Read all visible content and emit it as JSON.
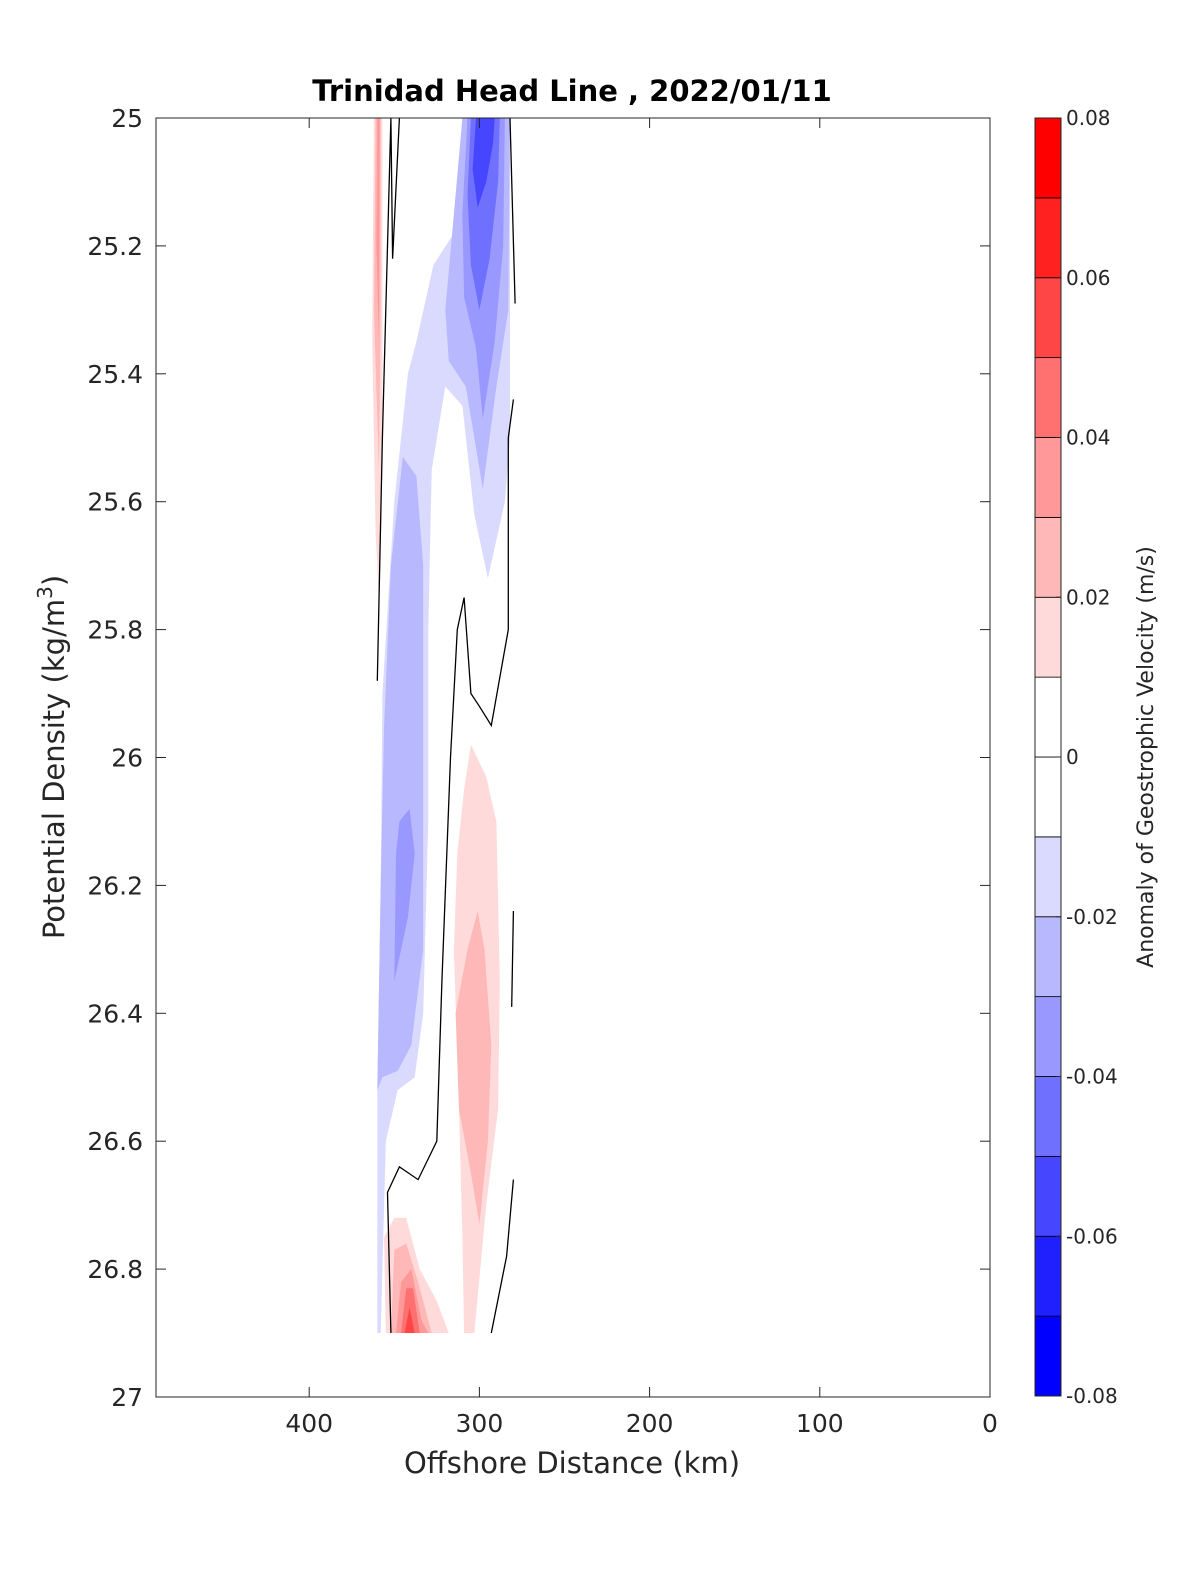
{
  "chart_data": {
    "type": "filled-contour",
    "title": "Trinidad Head Line , 2022/01/11",
    "xlabel": "Offshore Distance (km)",
    "ylabel_main": "Potential Density (kg/m",
    "ylabel_sup": "3",
    "ylabel_close": ")",
    "xlim": [
      490,
      0
    ],
    "ylim": [
      25,
      27
    ],
    "y_reversed": true,
    "x_ticks": [
      400,
      300,
      200,
      100,
      0
    ],
    "x_tick_labels": [
      "400",
      "300",
      "200",
      "100",
      "0"
    ],
    "y_ticks": [
      25,
      25.2,
      25.4,
      25.6,
      25.8,
      26,
      26.2,
      26.4,
      26.6,
      26.8,
      27
    ],
    "y_tick_labels": [
      "25",
      "25.2",
      "25.4",
      "25.6",
      "25.8",
      "26",
      "26.2",
      "26.4",
      "26.6",
      "26.8",
      "27"
    ],
    "colorbar": {
      "label": "Anomaly of Geostrophic Velocity (m/s)",
      "range": [
        -0.08,
        0.08
      ],
      "levels": [
        -0.08,
        -0.07,
        -0.06,
        -0.05,
        -0.04,
        -0.03,
        -0.02,
        -0.01,
        0,
        0.01,
        0.02,
        0.03,
        0.04,
        0.05,
        0.06,
        0.07,
        0.08
      ],
      "colors": [
        "#0000ff",
        "#2020ff",
        "#4646ff",
        "#7070ff",
        "#9898ff",
        "#b8b8ff",
        "#dadaff",
        "#ffffff",
        "#ffffff",
        "#ffdada",
        "#ffb8b8",
        "#ff9898",
        "#ff7070",
        "#ff4646",
        "#ff2020",
        "#ff0000"
      ],
      "tick_values": [
        0.08,
        0.06,
        0.04,
        0.02,
        0,
        -0.02,
        -0.04,
        -0.06,
        -0.08
      ],
      "tick_labels": [
        "0.08",
        "0.06",
        "0.04",
        "0.02",
        "0",
        "-0.02",
        "-0.04",
        "-0.06",
        "-0.08"
      ]
    },
    "data_extent": {
      "x": [
        280,
        360
      ],
      "y": [
        25,
        26.9
      ]
    },
    "regions": [
      {
        "sign": "negative",
        "level": -0.01,
        "color": "#dadaff",
        "poly": [
          [
            360,
            26.9
          ],
          [
            360,
            26.52
          ],
          [
            358,
            26.2
          ],
          [
            357,
            25.9
          ],
          [
            350,
            25.6
          ],
          [
            342,
            25.4
          ],
          [
            337,
            25.35
          ],
          [
            327,
            25.23
          ],
          [
            315,
            25.18
          ],
          [
            305,
            25.15
          ],
          [
            297,
            25.02
          ],
          [
            282,
            25
          ],
          [
            282,
            25.5
          ],
          [
            285,
            25.6
          ],
          [
            295,
            25.72
          ],
          [
            303,
            25.62
          ],
          [
            310,
            25.45
          ],
          [
            320,
            25.42
          ],
          [
            328,
            25.55
          ],
          [
            330,
            25.8
          ],
          [
            330,
            26.1
          ],
          [
            333,
            26.4
          ],
          [
            338,
            26.5
          ],
          [
            348,
            26.52
          ],
          [
            355,
            26.6
          ],
          [
            358,
            26.9
          ]
        ]
      },
      {
        "sign": "negative",
        "level": -0.02,
        "color": "#b8b8ff",
        "poly": [
          [
            360,
            26.52
          ],
          [
            358,
            26.2
          ],
          [
            356,
            25.95
          ],
          [
            352,
            25.7
          ],
          [
            345,
            25.53
          ],
          [
            337,
            25.56
          ],
          [
            333,
            25.7
          ],
          [
            333,
            26
          ],
          [
            333,
            26.3
          ],
          [
            340,
            26.45
          ],
          [
            348,
            26.49
          ],
          [
            357,
            26.5
          ]
        ]
      },
      {
        "sign": "negative",
        "level": -0.02,
        "color": "#b8b8ff",
        "poly": [
          [
            310,
            25
          ],
          [
            315,
            25.15
          ],
          [
            320,
            25.3
          ],
          [
            318,
            25.38
          ],
          [
            308,
            25.42
          ],
          [
            298,
            25.58
          ],
          [
            290,
            25.42
          ],
          [
            283,
            25.3
          ],
          [
            282,
            25
          ]
        ]
      },
      {
        "sign": "negative",
        "level": -0.03,
        "color": "#9898ff",
        "poly": [
          [
            350,
            26.35
          ],
          [
            349,
            26.15
          ],
          [
            347,
            26.1
          ],
          [
            341,
            26.08
          ],
          [
            338,
            26.15
          ],
          [
            342,
            26.25
          ]
        ]
      },
      {
        "sign": "negative",
        "level": -0.03,
        "color": "#9898ff",
        "poly": [
          [
            307,
            25
          ],
          [
            310,
            25.15
          ],
          [
            309,
            25.28
          ],
          [
            302,
            25.36
          ],
          [
            298,
            25.47
          ],
          [
            291,
            25.35
          ],
          [
            286,
            25.2
          ],
          [
            285,
            25
          ]
        ]
      },
      {
        "sign": "negative",
        "level": -0.04,
        "color": "#7070ff",
        "poly": [
          [
            305,
            25
          ],
          [
            307,
            25.12
          ],
          [
            305,
            25.23
          ],
          [
            300,
            25.3
          ],
          [
            294,
            25.22
          ],
          [
            289,
            25.1
          ],
          [
            288,
            25
          ]
        ]
      },
      {
        "sign": "negative",
        "level": -0.05,
        "color": "#4646ff",
        "poly": [
          [
            302,
            25
          ],
          [
            304,
            25.08
          ],
          [
            301,
            25.14
          ],
          [
            296,
            25.1
          ],
          [
            292,
            25.04
          ],
          [
            291,
            25
          ]
        ]
      },
      {
        "sign": "positive",
        "level": 0.01,
        "color": "#ffdada",
        "poly": [
          [
            362,
            25
          ],
          [
            363,
            25.35
          ],
          [
            361,
            25.65
          ],
          [
            359,
            25.75
          ],
          [
            357,
            25.5
          ],
          [
            357,
            25
          ]
        ]
      },
      {
        "sign": "positive",
        "level": 0.02,
        "color": "#ffb8b8",
        "poly": [
          [
            361,
            25
          ],
          [
            362,
            25.3
          ],
          [
            359,
            25.55
          ],
          [
            358,
            25.3
          ],
          [
            358,
            25
          ]
        ]
      },
      {
        "sign": "positive",
        "level": 0.03,
        "color": "#ff9898",
        "poly": [
          [
            360,
            25
          ],
          [
            360.5,
            25.2
          ],
          [
            359,
            25.35
          ],
          [
            358.5,
            25
          ]
        ]
      },
      {
        "sign": "positive",
        "level": 0.01,
        "color": "#ffdada",
        "poly": [
          [
            315,
            26.3
          ],
          [
            312,
            26.55
          ],
          [
            310,
            26.75
          ],
          [
            309,
            26.9
          ],
          [
            303,
            26.9
          ],
          [
            296,
            26.7
          ],
          [
            289,
            26.55
          ],
          [
            288,
            26.35
          ],
          [
            290,
            26.1
          ],
          [
            296,
            26.03
          ],
          [
            305,
            25.98
          ],
          [
            309,
            26.05
          ],
          [
            313,
            26.15
          ]
        ]
      },
      {
        "sign": "positive",
        "level": 0.02,
        "color": "#ffb8b8",
        "poly": [
          [
            314,
            26.4
          ],
          [
            312,
            26.55
          ],
          [
            305,
            26.65
          ],
          [
            300,
            26.73
          ],
          [
            295,
            26.6
          ],
          [
            293,
            26.45
          ],
          [
            297,
            26.3
          ],
          [
            301,
            26.24
          ],
          [
            307,
            26.3
          ]
        ]
      },
      {
        "sign": "positive",
        "level": 0.01,
        "color": "#ffdada",
        "poly": [
          [
            355,
            26.9
          ],
          [
            356,
            26.75
          ],
          [
            350,
            26.72
          ],
          [
            343,
            26.72
          ],
          [
            335,
            26.8
          ],
          [
            325,
            26.85
          ],
          [
            318,
            26.9
          ]
        ]
      },
      {
        "sign": "positive",
        "level": 0.02,
        "color": "#ffb8b8",
        "poly": [
          [
            352,
            26.9
          ],
          [
            350,
            26.77
          ],
          [
            343,
            26.76
          ],
          [
            336,
            26.82
          ],
          [
            328,
            26.9
          ]
        ]
      },
      {
        "sign": "positive",
        "level": 0.03,
        "color": "#ff9898",
        "poly": [
          [
            349,
            26.9
          ],
          [
            346,
            26.82
          ],
          [
            340,
            26.8
          ],
          [
            334,
            26.88
          ],
          [
            330,
            26.9
          ]
        ]
      },
      {
        "sign": "positive",
        "level": 0.04,
        "color": "#ff7070",
        "poly": [
          [
            346,
            26.9
          ],
          [
            343,
            26.83
          ],
          [
            339,
            26.83
          ],
          [
            335,
            26.9
          ]
        ]
      },
      {
        "sign": "positive",
        "level": 0.05,
        "color": "#ff4646",
        "poly": [
          [
            344,
            26.9
          ],
          [
            341,
            26.86
          ],
          [
            338,
            26.9
          ]
        ]
      }
    ],
    "zero_contours": [
      [
        [
          360,
          25.88
        ],
        [
          357,
          25.5
        ],
        [
          355,
          25.3
        ],
        [
          352,
          25
        ],
        [
          351,
          25.22
        ],
        [
          347,
          25
        ]
      ],
      [
        [
          352,
          26.9
        ],
        [
          354,
          26.68
        ],
        [
          347,
          26.64
        ],
        [
          336,
          26.66
        ],
        [
          325,
          26.6
        ],
        [
          322,
          26.35
        ],
        [
          317,
          26
        ],
        [
          313,
          25.8
        ],
        [
          309,
          25.75
        ],
        [
          305,
          25.9
        ],
        [
          300,
          25.92
        ],
        [
          293,
          25.95
        ],
        [
          283,
          25.8
        ],
        [
          283,
          25.5
        ],
        [
          280,
          25.44
        ]
      ],
      [
        [
          279,
          25.29
        ],
        [
          282,
          25.0
        ]
      ],
      [
        [
          280,
          26.24
        ],
        [
          281,
          26.39
        ]
      ],
      [
        [
          280,
          26.66
        ],
        [
          284,
          26.78
        ],
        [
          293,
          26.9
        ]
      ]
    ]
  }
}
